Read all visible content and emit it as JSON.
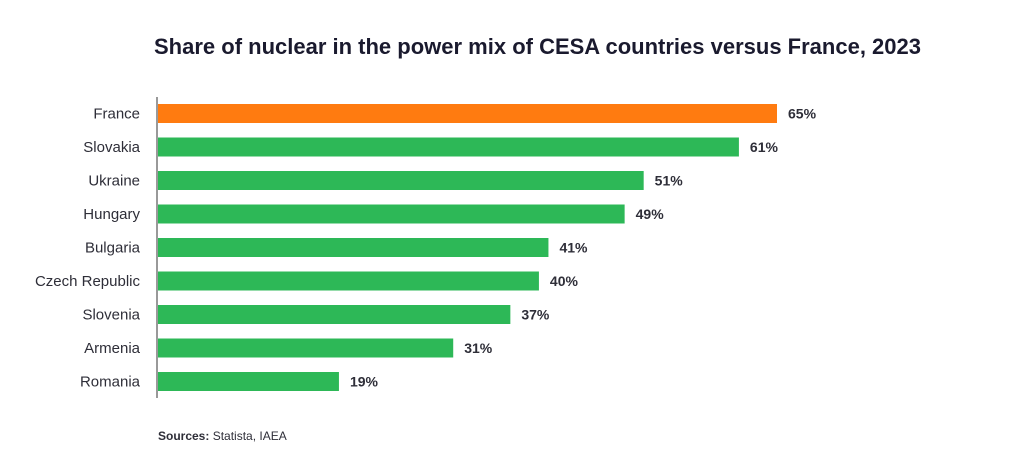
{
  "chart_data": {
    "type": "bar",
    "orientation": "horizontal",
    "title": "Share of nuclear in the power mix of CESA countries versus France, 2023",
    "categories": [
      "France",
      "Slovakia",
      "Ukraine",
      "Hungary",
      "Bulgaria",
      "Czech Republic",
      "Slovenia",
      "Armenia",
      "Romania"
    ],
    "values": [
      65,
      61,
      51,
      49,
      41,
      40,
      37,
      31,
      19
    ],
    "value_labels": [
      "65%",
      "61%",
      "51%",
      "49%",
      "41%",
      "40%",
      "37%",
      "31%",
      "19%"
    ],
    "unit": "%",
    "xlim": [
      0,
      65
    ],
    "grid": false,
    "legend": "none",
    "colors": {
      "highlight": "#ff7b10",
      "default": "#2db857"
    },
    "highlight_category": "France"
  },
  "footer": {
    "sources_label": "Sources:",
    "sources_text": " Statista, IAEA"
  }
}
